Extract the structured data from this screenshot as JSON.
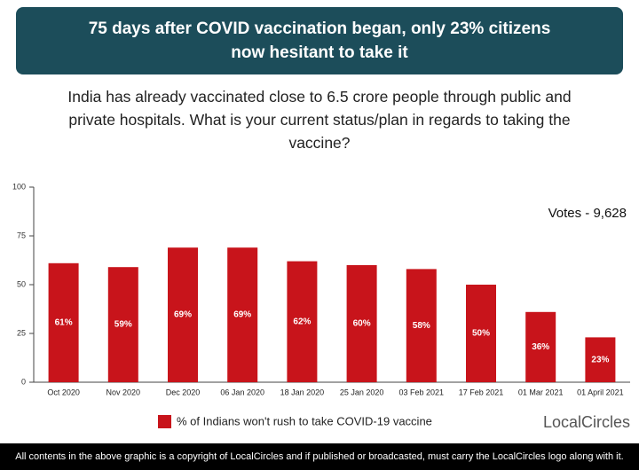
{
  "chart_data": {
    "type": "bar",
    "title": "75 days after COVID vaccination began, only 23% citizens now hesitant to take it",
    "subtitle": "India has already vaccinated close to 6.5 crore people through public and private hospitals. What is your current status/plan in regards to taking the vaccine?",
    "annotation": "Votes - 9,628",
    "categories": [
      "Oct 2020",
      "Nov 2020",
      "Dec 2020",
      "06 Jan 2020",
      "18 Jan 2020",
      "25 Jan 2020",
      "03 Feb 2021",
      "17 Feb 2021",
      "01 Mar 2021",
      "01 April 2021"
    ],
    "series": [
      {
        "name": "% of Indians won't rush to take COVID-19 vaccine",
        "color": "#c8141b",
        "values": [
          61,
          59,
          69,
          69,
          62,
          60,
          58,
          50,
          36,
          23
        ],
        "value_labels": [
          "61%",
          "59%",
          "69%",
          "69%",
          "62%",
          "60%",
          "58%",
          "50%",
          "36%",
          "23%"
        ]
      }
    ],
    "ylim": [
      0,
      100
    ],
    "yticks": [
      0,
      25,
      50,
      75,
      100
    ],
    "grid": false
  },
  "logo": "LocalCircles",
  "footer": "All contents in the above graphic is a copyright of LocalCircles and if published or broadcasted, must carry the LocalCircles logo along with it."
}
